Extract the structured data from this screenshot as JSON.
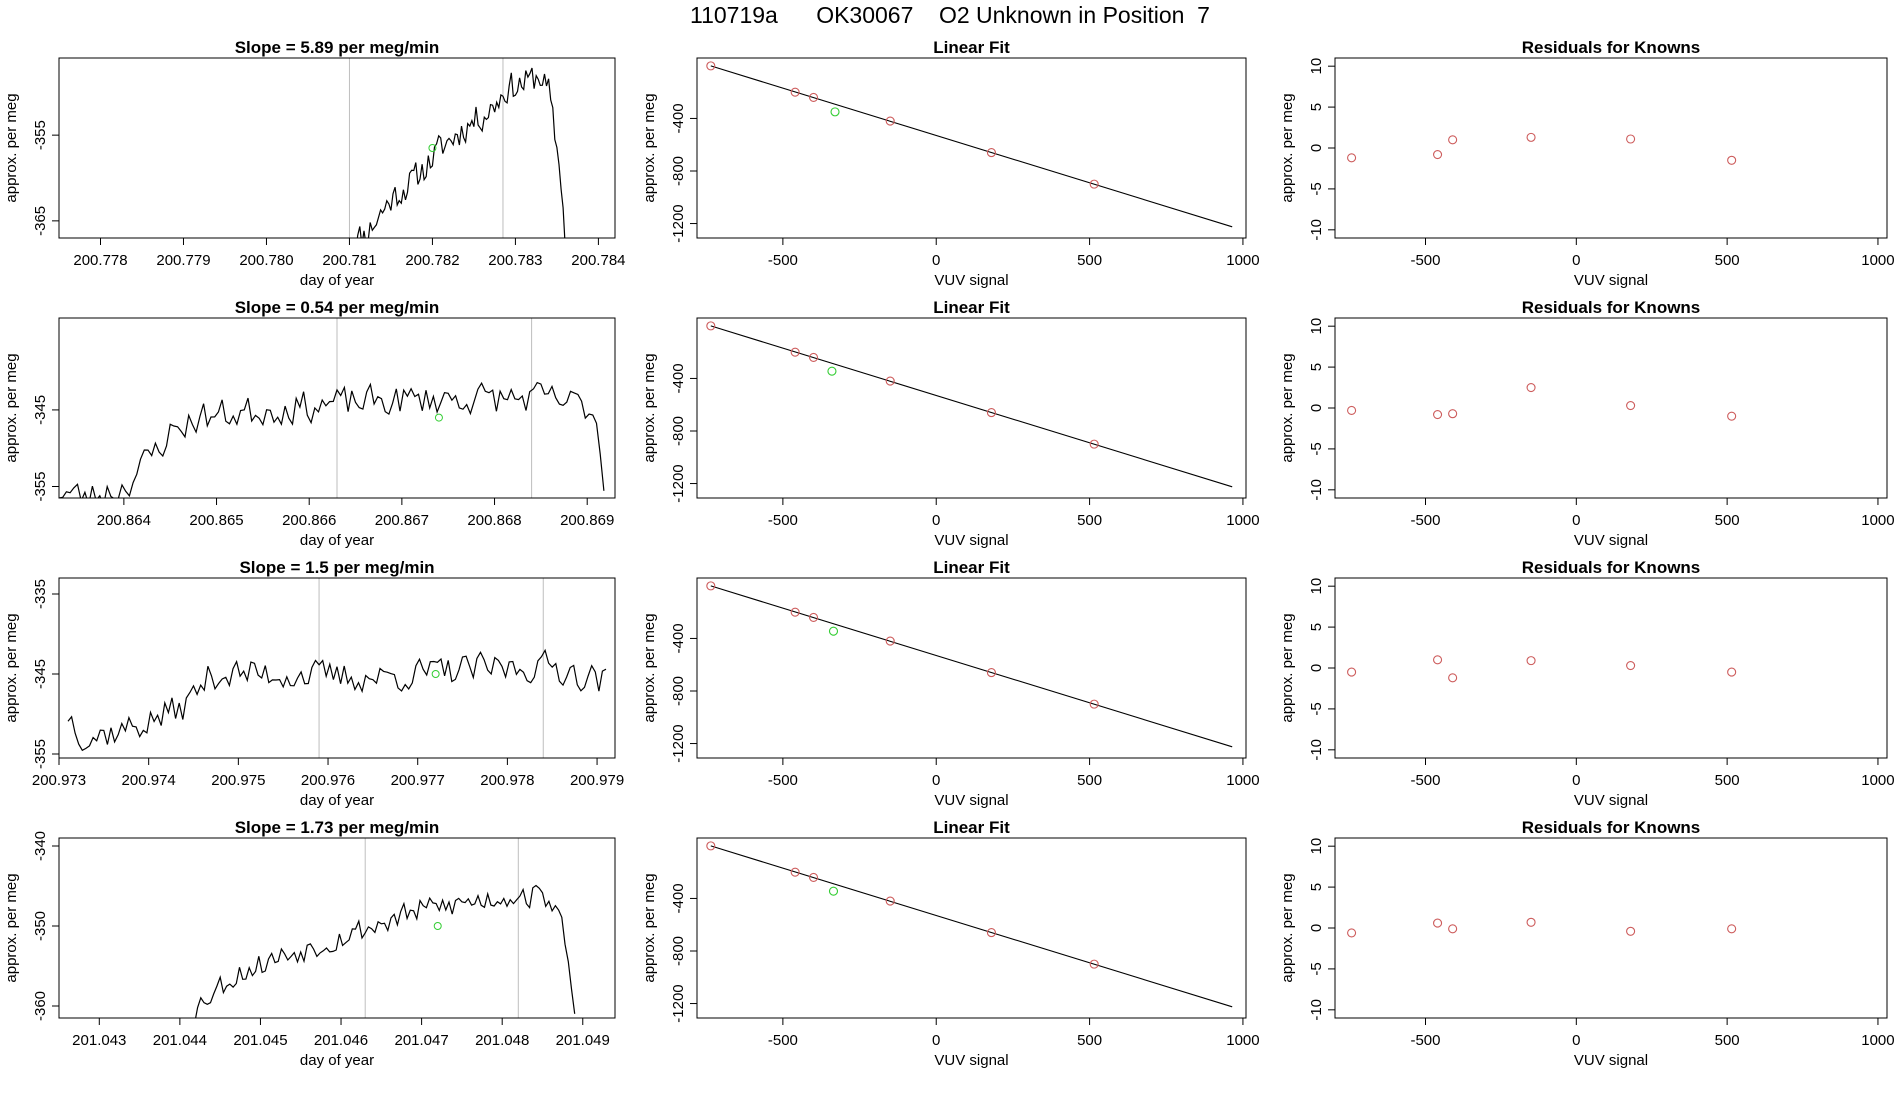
{
  "page": {
    "title": "110719a      OK30067    O2 Unknown in Position  7"
  },
  "colors": {
    "line": "#000000",
    "frame": "#000000",
    "vline": "#bebebe",
    "known_point": "#cd5c5c",
    "unknown_point": "#32cd32"
  },
  "chart_data": [
    {
      "type": "line",
      "title": "Slope =  5.89  per meg/min",
      "xlabel": "day of year",
      "ylabel": "approx. per meg",
      "xlim": [
        200.7775,
        200.7842
      ],
      "ylim": [
        -367,
        -346
      ],
      "xticks": [
        200.778,
        200.779,
        200.78,
        200.781,
        200.782,
        200.783,
        200.784
      ],
      "xtick_labels": [
        "200.778",
        "200.779",
        "200.780",
        "200.781",
        "200.782",
        "200.783",
        "200.784"
      ],
      "yticks": [
        -355,
        -365
      ],
      "ytick_labels": [
        "-355",
        "-365"
      ],
      "vlines": [
        200.781,
        200.78285
      ],
      "marker": {
        "x": 200.782,
        "y": -356.5
      },
      "start": 200.781,
      "end": 200.7836,
      "step": 2.5e-05,
      "knots": [
        [
          200.781,
          -367.5
        ],
        [
          200.7812,
          -366.5
        ],
        [
          200.7815,
          -362.5
        ],
        [
          200.7818,
          -360
        ],
        [
          200.7821,
          -356.5
        ],
        [
          200.7824,
          -354
        ],
        [
          200.7827,
          -352
        ],
        [
          200.7829,
          -349.5
        ],
        [
          200.7831,
          -349
        ],
        [
          200.7833,
          -348
        ],
        [
          200.7834,
          -350
        ],
        [
          200.78355,
          -360
        ],
        [
          200.7836,
          -367.5
        ]
      ],
      "noise_amp": 2.2,
      "seed": 11
    },
    {
      "type": "line",
      "title": "Slope =  0.54  per meg/min",
      "xlabel": "day of year",
      "ylabel": "approx. per meg",
      "xlim": [
        200.8633,
        200.8693
      ],
      "ylim": [
        -356.5,
        -333
      ],
      "xticks": [
        200.864,
        200.865,
        200.866,
        200.867,
        200.868,
        200.869
      ],
      "xtick_labels": [
        "200.864",
        "200.865",
        "200.866",
        "200.867",
        "200.868",
        "200.869"
      ],
      "yticks": [
        -345,
        -355
      ],
      "ytick_labels": [
        "-345",
        "-355"
      ],
      "vlines": [
        200.8663,
        200.8684
      ],
      "marker": {
        "x": 200.8674,
        "y": -346
      },
      "start": 200.8633,
      "end": 200.8692,
      "step": 4e-05,
      "knots": [
        [
          200.8633,
          -355.5
        ],
        [
          200.8636,
          -356.5
        ],
        [
          200.864,
          -355
        ],
        [
          200.8643,
          -351
        ],
        [
          200.8645,
          -348
        ],
        [
          200.8648,
          -346
        ],
        [
          200.8655,
          -345
        ],
        [
          200.8665,
          -344
        ],
        [
          200.8675,
          -343.5
        ],
        [
          200.8685,
          -343.5
        ],
        [
          200.869,
          -344.5
        ],
        [
          200.8691,
          -346
        ],
        [
          200.8692,
          -357
        ]
      ],
      "noise_amp": 2.6,
      "seed": 23
    },
    {
      "type": "line",
      "title": "Slope =  1.5  per meg/min",
      "xlabel": "day of year",
      "ylabel": "approx. per meg",
      "xlim": [
        200.973,
        200.9792
      ],
      "ylim": [
        -355.5,
        -333
      ],
      "xticks": [
        200.973,
        200.974,
        200.975,
        200.976,
        200.977,
        200.978,
        200.979
      ],
      "xtick_labels": [
        "200.973",
        "200.974",
        "200.975",
        "200.976",
        "200.977",
        "200.978",
        "200.979"
      ],
      "yticks": [
        -335,
        -345,
        -355
      ],
      "ytick_labels": [
        "-335",
        "-345",
        "-355"
      ],
      "vlines": [
        200.9759,
        200.9784
      ],
      "marker": {
        "x": 200.9772,
        "y": -345
      },
      "start": 200.9731,
      "end": 200.9791,
      "step": 4e-05,
      "knots": [
        [
          200.9731,
          -350
        ],
        [
          200.9733,
          -353
        ],
        [
          200.9737,
          -352
        ],
        [
          200.974,
          -351
        ],
        [
          200.9744,
          -349
        ],
        [
          200.9747,
          -345
        ],
        [
          200.9755,
          -345
        ],
        [
          200.9765,
          -345.5
        ],
        [
          200.9775,
          -344.5
        ],
        [
          200.9785,
          -344
        ],
        [
          200.9791,
          -346
        ]
      ],
      "noise_amp": 2.4,
      "seed": 37
    },
    {
      "type": "line",
      "title": "Slope =  1.73  per meg/min",
      "xlabel": "day of year",
      "ylabel": "approx. per meg",
      "xlim": [
        201.0425,
        201.0494
      ],
      "ylim": [
        -361.5,
        -339
      ],
      "xticks": [
        201.043,
        201.044,
        201.045,
        201.046,
        201.047,
        201.048,
        201.049
      ],
      "xtick_labels": [
        "201.043",
        "201.044",
        "201.045",
        "201.046",
        "201.047",
        "201.048",
        "201.049"
      ],
      "yticks": [
        -340,
        -350,
        -360
      ],
      "ytick_labels": [
        "-340",
        "-350",
        "-360"
      ],
      "vlines": [
        201.0463,
        201.0482
      ],
      "marker": {
        "x": 201.0472,
        "y": -350
      },
      "start": 201.0441,
      "end": 201.0489,
      "step": 4e-05,
      "knots": [
        [
          201.0441,
          -362
        ],
        [
          201.0443,
          -359
        ],
        [
          201.0447,
          -356
        ],
        [
          201.0452,
          -354
        ],
        [
          201.0458,
          -352
        ],
        [
          201.0464,
          -350
        ],
        [
          201.047,
          -348
        ],
        [
          201.0476,
          -347
        ],
        [
          201.0482,
          -346
        ],
        [
          201.0486,
          -346.5
        ],
        [
          201.0488,
          -352
        ],
        [
          201.0489,
          -362
        ]
      ],
      "noise_amp": 2.0,
      "seed": 53
    },
    {
      "type": "scatter",
      "title": "Linear Fit",
      "xlabel": "VUV signal",
      "ylabel": "approx. per meg",
      "xlim": [
        -780,
        1010
      ],
      "ylim": [
        -1310,
        60
      ],
      "xticks": [
        -500,
        0,
        500,
        1000
      ],
      "xtick_labels": [
        "-500",
        "0",
        "500",
        "1000"
      ],
      "yticks": [
        -400,
        -800,
        -1200
      ],
      "ytick_labels": [
        "-400",
        "-800",
        "-1200"
      ],
      "line": {
        "x": [
          -735,
          965
        ],
        "y": [
          0,
          -1225
        ]
      },
      "known_x": [
        -735,
        -460,
        -400,
        -150,
        180,
        515
      ],
      "known_y": [
        0,
        -200,
        -240,
        -420,
        -660,
        -900
      ],
      "unknown": {
        "x": -330,
        "y": -350
      }
    },
    {
      "type": "scatter",
      "title": "Linear Fit",
      "xlabel": "VUV signal",
      "ylabel": "approx. per meg",
      "xlim": [
        -780,
        1010
      ],
      "ylim": [
        -1310,
        60
      ],
      "xticks": [
        -500,
        0,
        500,
        1000
      ],
      "xtick_labels": [
        "-500",
        "0",
        "500",
        "1000"
      ],
      "yticks": [
        -400,
        -800,
        -1200
      ],
      "ytick_labels": [
        "-400",
        "-800",
        "-1200"
      ],
      "line": {
        "x": [
          -735,
          965
        ],
        "y": [
          0,
          -1225
        ]
      },
      "known_x": [
        -735,
        -460,
        -400,
        -150,
        180,
        515
      ],
      "known_y": [
        0,
        -200,
        -240,
        -420,
        -660,
        -900
      ],
      "unknown": {
        "x": -340,
        "y": -345
      }
    },
    {
      "type": "scatter",
      "title": "Linear Fit",
      "xlabel": "VUV signal",
      "ylabel": "approx. per meg",
      "xlim": [
        -780,
        1010
      ],
      "ylim": [
        -1310,
        60
      ],
      "xticks": [
        -500,
        0,
        500,
        1000
      ],
      "xtick_labels": [
        "-500",
        "0",
        "500",
        "1000"
      ],
      "yticks": [
        -400,
        -800,
        -1200
      ],
      "ytick_labels": [
        "-400",
        "-800",
        "-1200"
      ],
      "line": {
        "x": [
          -735,
          965
        ],
        "y": [
          0,
          -1225
        ]
      },
      "known_x": [
        -735,
        -460,
        -400,
        -150,
        180,
        515
      ],
      "known_y": [
        0,
        -200,
        -240,
        -420,
        -660,
        -900
      ],
      "unknown": {
        "x": -335,
        "y": -345
      }
    },
    {
      "type": "scatter",
      "title": "Linear Fit",
      "xlabel": "VUV signal",
      "ylabel": "approx. per meg",
      "xlim": [
        -780,
        1010
      ],
      "ylim": [
        -1310,
        60
      ],
      "xticks": [
        -500,
        0,
        500,
        1000
      ],
      "xtick_labels": [
        "-500",
        "0",
        "500",
        "1000"
      ],
      "yticks": [
        -400,
        -800,
        -1200
      ],
      "ytick_labels": [
        "-400",
        "-800",
        "-1200"
      ],
      "line": {
        "x": [
          -735,
          965
        ],
        "y": [
          0,
          -1225
        ]
      },
      "known_x": [
        -735,
        -460,
        -400,
        -150,
        180,
        515
      ],
      "known_y": [
        0,
        -200,
        -240,
        -420,
        -660,
        -900
      ],
      "unknown": {
        "x": -335,
        "y": -345
      }
    },
    {
      "type": "scatter",
      "title": "Residuals for Knowns",
      "xlabel": "VUV signal",
      "ylabel": "approx. per meg",
      "xlim": [
        -800,
        1030
      ],
      "ylim": [
        -11,
        11
      ],
      "xticks": [
        -500,
        0,
        500,
        1000
      ],
      "xtick_labels": [
        "-500",
        "0",
        "500",
        "1000"
      ],
      "yticks": [
        10,
        5,
        0,
        -5,
        -10
      ],
      "ytick_labels": [
        "10",
        "5",
        "0",
        "-5",
        "-10"
      ],
      "known_x": [
        -745,
        -460,
        -410,
        -150,
        180,
        515
      ],
      "known_y": [
        -1.2,
        -0.8,
        1.0,
        1.3,
        1.1,
        -1.5
      ]
    },
    {
      "type": "scatter",
      "title": "Residuals for Knowns",
      "xlabel": "VUV signal",
      "ylabel": "approx. per meg",
      "xlim": [
        -800,
        1030
      ],
      "ylim": [
        -11,
        11
      ],
      "xticks": [
        -500,
        0,
        500,
        1000
      ],
      "xtick_labels": [
        "-500",
        "0",
        "500",
        "1000"
      ],
      "yticks": [
        10,
        5,
        0,
        -5,
        -10
      ],
      "ytick_labels": [
        "10",
        "5",
        "0",
        "-5",
        "-10"
      ],
      "known_x": [
        -745,
        -460,
        -410,
        -150,
        180,
        515
      ],
      "known_y": [
        -0.3,
        -0.8,
        -0.7,
        2.5,
        0.3,
        -1.0
      ]
    },
    {
      "type": "scatter",
      "title": "Residuals for Knowns",
      "xlabel": "VUV signal",
      "ylabel": "approx. per meg",
      "xlim": [
        -800,
        1030
      ],
      "ylim": [
        -11,
        11
      ],
      "xticks": [
        -500,
        0,
        500,
        1000
      ],
      "xtick_labels": [
        "-500",
        "0",
        "500",
        "1000"
      ],
      "yticks": [
        10,
        5,
        0,
        -5,
        -10
      ],
      "ytick_labels": [
        "10",
        "5",
        "0",
        "-5",
        "-10"
      ],
      "known_x": [
        -745,
        -460,
        -410,
        -150,
        180,
        515
      ],
      "known_y": [
        -0.5,
        1.0,
        -1.2,
        0.9,
        0.3,
        -0.5
      ]
    },
    {
      "type": "scatter",
      "title": "Residuals for Knowns",
      "xlabel": "VUV signal",
      "ylabel": "approx. per meg",
      "xlim": [
        -800,
        1030
      ],
      "ylim": [
        -11,
        11
      ],
      "xticks": [
        -500,
        0,
        500,
        1000
      ],
      "xtick_labels": [
        "-500",
        "0",
        "500",
        "1000"
      ],
      "yticks": [
        10,
        5,
        0,
        -5,
        -10
      ],
      "ytick_labels": [
        "10",
        "5",
        "0",
        "-5",
        "-10"
      ],
      "known_x": [
        -745,
        -460,
        -410,
        -150,
        180,
        515
      ],
      "known_y": [
        -0.6,
        0.6,
        -0.1,
        0.7,
        -0.4,
        -0.1
      ]
    }
  ]
}
